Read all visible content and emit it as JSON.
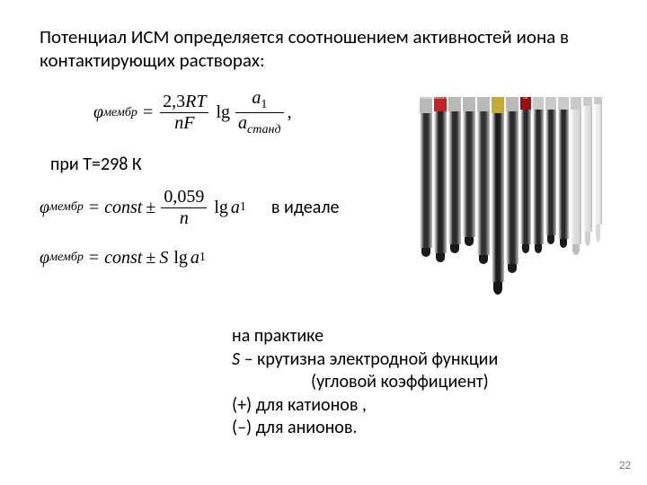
{
  "headline": "Потенциал ИСМ  определяется соотношением активностей иона в контактирующих растворах:",
  "eq1": {
    "lhs_sym": "φ",
    "lhs_sub": "мембр",
    "eq_sign": "=",
    "frac1_num": "2,3",
    "frac1_num_rt": "RT",
    "frac1_den": "nF",
    "lg": "lg",
    "frac2_num_a": "a",
    "frac2_num_sub": "1",
    "frac2_den_a": "a",
    "frac2_den_sub": "станд",
    "comma": ","
  },
  "condition": "при Т=298 К",
  "eq2": {
    "lhs_sym": "φ",
    "lhs_sub": "мембр",
    "eq_sign": "=",
    "const": "const",
    "pm": "±",
    "frac_num": "0,059",
    "frac_den": "n",
    "lg": "lg",
    "a": "a",
    "a_sub": "1"
  },
  "ideal_label": "в идеале",
  "eq3": {
    "lhs_sym": "φ",
    "lhs_sub": "мембр",
    "eq_sign": "=",
    "const": "const",
    "pm": "±",
    "S": "S",
    "lg": "lg",
    "a": "a",
    "a_sub": "1"
  },
  "practice": {
    "l1": "на практике",
    "l2_pre": "S",
    "l2_rest": " – крутизна электродной функции",
    "l3": "(угловой коэффициент) ",
    "l4": "(+) для катионов ,",
    "l5": "(–) для анионов."
  },
  "page_number": "22",
  "photo": {
    "background": "#ffffff",
    "electrodes": [
      {
        "w": 14,
        "cap_h": 18,
        "cap_c": "#b9b9b9",
        "body_h": 150,
        "body_c": "#2e2e2e",
        "tip_h": 10,
        "tip_c": "#1a1a1a",
        "label": "RT 02/21K"
      },
      {
        "w": 14,
        "cap_h": 16,
        "cap_c": "#c02424",
        "body_h": 158,
        "body_c": "#242424",
        "tip_h": 10,
        "tip_c": "#1a1a1a",
        "label": "TRATE IE 1"
      },
      {
        "w": 14,
        "cap_h": 16,
        "cap_c": "#b9b9b9",
        "body_h": 148,
        "body_c": "#2b2b2b",
        "tip_h": 10,
        "tip_c": "#1a1a1a",
        "label": ""
      },
      {
        "w": 14,
        "cap_h": 16,
        "cap_c": "#b9b9b9",
        "body_h": 140,
        "body_c": "#303030",
        "tip_h": 10,
        "tip_c": "#1a1a1a",
        "label": ""
      },
      {
        "w": 14,
        "cap_h": 16,
        "cap_c": "#b9b9b9",
        "body_h": 160,
        "body_c": "#333333",
        "tip_h": 10,
        "tip_c": "#1a1a1a",
        "label": ""
      },
      {
        "w": 14,
        "cap_h": 18,
        "cap_c": "#c4a83a",
        "body_h": 188,
        "body_c": "#1d1d1d",
        "tip_h": 14,
        "tip_c": "#151515",
        "label": ""
      },
      {
        "w": 14,
        "cap_h": 16,
        "cap_c": "#b9b9b9",
        "body_h": 170,
        "body_c": "#2b2b2b",
        "tip_h": 10,
        "tip_c": "#1a1a1a",
        "label": ""
      },
      {
        "w": 12,
        "cap_h": 14,
        "cap_c": "#9a0e16",
        "body_h": 150,
        "body_c": "#2b2b2b",
        "tip_h": 10,
        "tip_c": "#1a1a1a",
        "label": "CA"
      },
      {
        "w": 12,
        "cap_h": 14,
        "cap_c": "#c9c9c9",
        "body_h": 150,
        "body_c": "#2b2b2b",
        "tip_h": 10,
        "tip_c": "#1a1a1a",
        "label": ""
      },
      {
        "w": 12,
        "cap_h": 14,
        "cap_c": "#c9c9c9",
        "body_h": 140,
        "body_c": "#2b2b2b",
        "tip_h": 10,
        "tip_c": "#1a1a1a",
        "label": ""
      },
      {
        "w": 12,
        "cap_h": 14,
        "cap_c": "#c9c9c9",
        "body_h": 144,
        "body_c": "#2b2b2b",
        "tip_h": 10,
        "tip_c": "#1a1a1a",
        "label": ""
      },
      {
        "w": 12,
        "cap_h": 14,
        "cap_c": "#c9c9c9",
        "body_h": 150,
        "body_c": "#dddddd",
        "tip_h": 12,
        "tip_c": "#bdbdbd",
        "label": ""
      },
      {
        "w": 10,
        "cap_h": 10,
        "cap_c": "#c9c9c9",
        "body_h": 140,
        "body_c": "#e1e1e1",
        "tip_h": 16,
        "tip_c": "#cfcfcf",
        "label": ""
      },
      {
        "w": 9,
        "cap_h": 8,
        "cap_c": "#c9c9c9",
        "body_h": 134,
        "body_c": "#ececec",
        "tip_h": 20,
        "tip_c": "#d7d7d7",
        "label": ""
      }
    ]
  }
}
